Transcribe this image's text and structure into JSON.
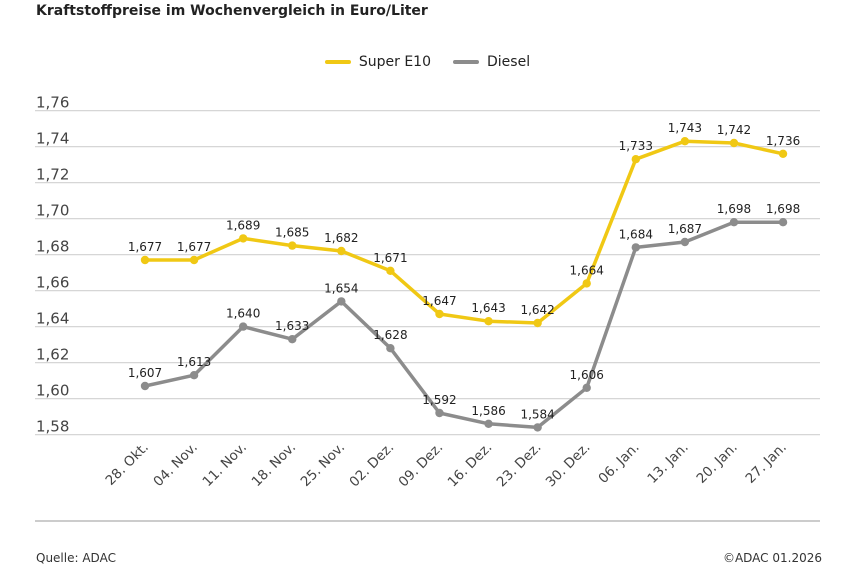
{
  "title": "Kraftstoffpreise im Wochenvergleich in Euro/Liter",
  "source": "Quelle: ADAC",
  "copyright": "©ADAC 01.2026",
  "chart_data": {
    "type": "line",
    "title": "Kraftstoffpreise im Wochenvergleich in Euro/Liter",
    "categories": [
      "28. Okt.",
      "04. Nov.",
      "11. Nov.",
      "18. Nov.",
      "25. Nov.",
      "02. Dez.",
      "09. Dez.",
      "16. Dez.",
      "23. Dez.",
      "30. Dez.",
      "06. Jan.",
      "13. Jan.",
      "20. Jan.",
      "27. Jan."
    ],
    "series": [
      {
        "name": "Super E10",
        "color": "#f0c814",
        "values": [
          1.677,
          1.677,
          1.689,
          1.685,
          1.682,
          1.671,
          1.647,
          1.643,
          1.642,
          1.664,
          1.733,
          1.743,
          1.742,
          1.736
        ]
      },
      {
        "name": "Diesel",
        "color": "#8c8c8c",
        "values": [
          1.607,
          1.613,
          1.64,
          1.633,
          1.654,
          1.628,
          1.592,
          1.586,
          1.584,
          1.606,
          1.684,
          1.687,
          1.698,
          1.698
        ]
      }
    ],
    "yticks": [
      "1,58",
      "1,60",
      "1,62",
      "1,64",
      "1,66",
      "1,68",
      "1,70",
      "1,72",
      "1,74",
      "1,76"
    ],
    "ylim": [
      1.58,
      1.76
    ],
    "grid": true,
    "legend": "top-center",
    "xlabel": "",
    "ylabel": ""
  }
}
